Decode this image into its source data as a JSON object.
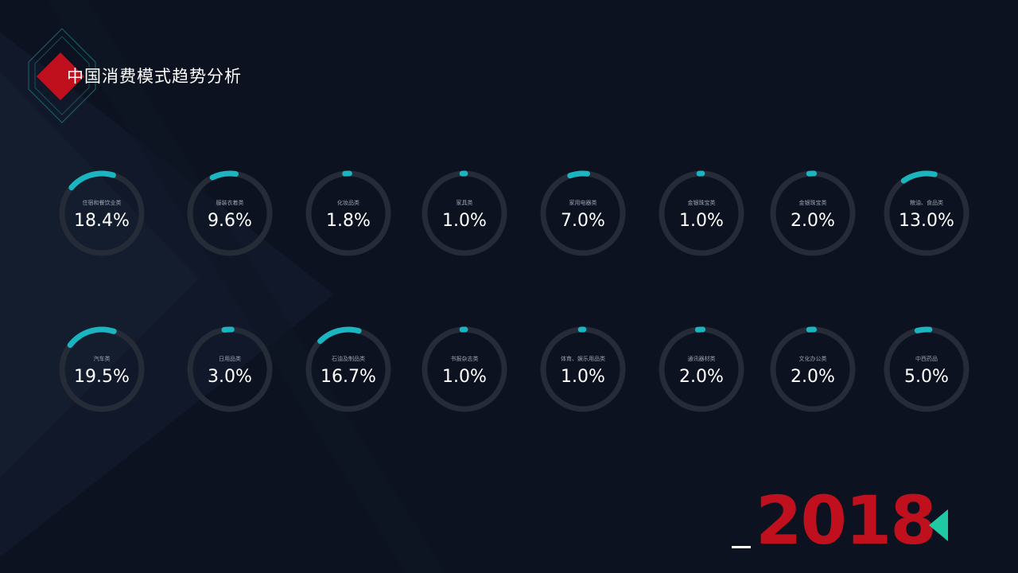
{
  "title": "中国消费模式趋势分析",
  "year": "2018",
  "colors": {
    "background": "#0c1220",
    "track": "#252c38",
    "arc": "#1bb5c1",
    "year": "#c0101e",
    "arrow": "#1ec9a4",
    "logo": "#c0101e"
  },
  "chart_data": {
    "type": "donut",
    "max_value_percent": 100,
    "items": [
      {
        "label": "住宿和餐饮业类",
        "value": 18.4,
        "display": "18.4%"
      },
      {
        "label": "服装衣着类",
        "value": 9.6,
        "display": "9.6%"
      },
      {
        "label": "化妆品类",
        "value": 1.8,
        "display": "1.8%"
      },
      {
        "label": "家具类",
        "value": 1.0,
        "display": "1.0%"
      },
      {
        "label": "家用电器类",
        "value": 7.0,
        "display": "7.0%"
      },
      {
        "label": "金银珠宝类",
        "value": 1.0,
        "display": "1.0%"
      },
      {
        "label": "金银珠宝类",
        "value": 2.0,
        "display": "2.0%"
      },
      {
        "label": "粮油、食品类",
        "value": 13.0,
        "display": "13.0%"
      },
      {
        "label": "汽车类",
        "value": 19.5,
        "display": "19.5%"
      },
      {
        "label": "日用品类",
        "value": 3.0,
        "display": "3.0%"
      },
      {
        "label": "石油及制品类",
        "value": 16.7,
        "display": "16.7%"
      },
      {
        "label": "书报杂志类",
        "value": 1.0,
        "display": "1.0%"
      },
      {
        "label": "体育、娱乐用品类",
        "value": 1.0,
        "display": "1.0%"
      },
      {
        "label": "通讯器材类",
        "value": 2.0,
        "display": "2.0%"
      },
      {
        "label": "文化办公类",
        "value": 2.0,
        "display": "2.0%"
      },
      {
        "label": "中西药品",
        "value": 5.0,
        "display": "5.0%"
      }
    ]
  }
}
